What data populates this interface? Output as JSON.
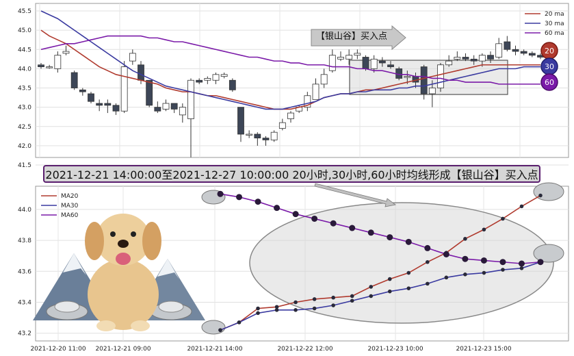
{
  "top_chart": {
    "y_ticks": [
      "45.5",
      "45.0",
      "44.5",
      "44.0",
      "43.5",
      "43.0",
      "42.5",
      "42.0",
      "41.5"
    ],
    "legend": [
      {
        "label": "20 ma",
        "color": "#b03a2e"
      },
      {
        "label": "30 ma",
        "color": "#3a3aa0"
      },
      {
        "label": "60 ma",
        "color": "#7a1aa8"
      }
    ],
    "arrow_label": "【银山谷】买入点",
    "badges": [
      {
        "label": "20",
        "color": "#b03a2e"
      },
      {
        "label": "30",
        "color": "#3a3aa0"
      },
      {
        "label": "60",
        "color": "#7a1aa8"
      }
    ]
  },
  "banner": "2021-12-21 14:00:00至2021-12-27 10:00:00 20小时,30小时,60小时均线形成【银山谷】买入点",
  "bottom_chart": {
    "y_ticks": [
      "44.0",
      "43.8",
      "43.6",
      "43.4",
      "43.2"
    ],
    "x_ticks": [
      "2021-12-20 11:00",
      "2021-12-21 09:00",
      "2021-12-21 14:00",
      "2021-12-22 12:00",
      "2021-12-23 10:00",
      "2021-12-23 15:00"
    ],
    "legend": [
      {
        "label": "MA20",
        "color": "#b03a2e"
      },
      {
        "label": "MA30",
        "color": "#3a3aa0"
      },
      {
        "label": "MA60",
        "color": "#7a1aa8"
      }
    ]
  },
  "chart_data": [
    {
      "type": "candlestick",
      "ylim": [
        41.5,
        45.5
      ],
      "candles": [
        [
          44.1,
          44.05,
          44.15,
          44.0
        ],
        [
          44.05,
          44.05,
          44.1,
          44.0
        ],
        [
          44.0,
          44.35,
          44.45,
          43.9
        ],
        [
          44.4,
          44.45,
          44.6,
          44.35
        ],
        [
          43.9,
          43.5,
          43.95,
          43.45
        ],
        [
          43.45,
          43.4,
          43.5,
          43.3
        ],
        [
          43.35,
          43.15,
          43.4,
          43.1
        ],
        [
          43.1,
          43.05,
          43.2,
          42.9
        ],
        [
          43.1,
          43.05,
          43.2,
          42.85
        ],
        [
          43.05,
          42.9,
          43.1,
          42.8
        ],
        [
          42.9,
          44.05,
          44.2,
          42.85
        ],
        [
          44.2,
          44.4,
          44.5,
          44.1
        ],
        [
          44.1,
          43.7,
          44.2,
          43.6
        ],
        [
          43.7,
          43.05,
          43.7,
          43.0
        ],
        [
          43.0,
          42.9,
          43.15,
          42.85
        ],
        [
          42.95,
          43.1,
          43.2,
          42.9
        ],
        [
          43.1,
          42.95,
          43.1,
          42.85
        ],
        [
          42.8,
          43.0,
          43.1,
          42.6
        ],
        [
          42.7,
          43.7,
          43.75,
          41.7
        ],
        [
          43.7,
          43.65,
          43.75,
          43.6
        ],
        [
          43.7,
          43.75,
          43.8,
          43.6
        ],
        [
          43.7,
          43.85,
          43.9,
          43.6
        ],
        [
          43.8,
          43.85,
          43.9,
          43.75
        ],
        [
          43.7,
          43.45,
          43.75,
          43.4
        ],
        [
          43.0,
          42.3,
          43.0,
          42.1
        ],
        [
          42.3,
          42.3,
          42.4,
          42.2
        ],
        [
          42.3,
          42.2,
          42.35,
          42.0
        ],
        [
          42.2,
          42.15,
          42.25,
          42.0
        ],
        [
          42.15,
          42.35,
          42.4,
          42.1
        ],
        [
          42.45,
          42.6,
          42.7,
          42.4
        ],
        [
          42.7,
          42.85,
          42.9,
          42.6
        ],
        [
          42.9,
          43.0,
          43.05,
          42.85
        ],
        [
          43.0,
          43.3,
          43.4,
          42.9
        ],
        [
          43.2,
          43.6,
          43.75,
          43.2
        ],
        [
          43.6,
          43.85,
          44.0,
          43.5
        ],
        [
          43.95,
          44.35,
          44.5,
          43.9
        ],
        [
          44.25,
          44.3,
          44.45,
          44.2
        ],
        [
          44.25,
          44.35,
          44.5,
          44.1
        ],
        [
          44.35,
          44.4,
          44.5,
          44.25
        ],
        [
          44.3,
          44.0,
          44.35,
          43.95
        ],
        [
          44.0,
          44.25,
          44.35,
          43.9
        ],
        [
          44.2,
          44.15,
          44.3,
          44.05
        ],
        [
          44.1,
          44.05,
          44.2,
          44.0
        ],
        [
          44.0,
          43.75,
          44.05,
          43.7
        ],
        [
          43.8,
          43.8,
          43.95,
          43.6
        ],
        [
          43.8,
          43.65,
          43.9,
          43.5
        ],
        [
          44.05,
          43.35,
          44.1,
          43.2
        ],
        [
          43.35,
          43.5,
          43.7,
          43.0
        ],
        [
          43.5,
          44.1,
          44.15,
          43.4
        ],
        [
          44.1,
          44.2,
          44.35,
          44.05
        ],
        [
          44.25,
          44.3,
          44.45,
          44.2
        ],
        [
          44.3,
          44.25,
          44.4,
          44.2
        ],
        [
          44.25,
          44.2,
          44.35,
          44.1
        ],
        [
          44.2,
          44.35,
          44.4,
          44.05
        ],
        [
          44.35,
          44.25,
          44.45,
          44.15
        ],
        [
          44.3,
          44.65,
          44.8,
          44.25
        ],
        [
          44.7,
          44.5,
          44.85,
          44.45
        ],
        [
          44.5,
          44.45,
          44.6,
          44.35
        ],
        [
          44.45,
          44.4,
          44.5,
          44.35
        ],
        [
          44.4,
          44.35,
          44.45,
          44.3
        ],
        [
          44.35,
          44.3,
          44.4,
          44.25
        ]
      ],
      "ma20": [
        45.0,
        44.85,
        44.75,
        44.65,
        44.5,
        44.35,
        44.2,
        44.05,
        43.95,
        43.85,
        43.8,
        43.75,
        43.7,
        43.65,
        43.6,
        43.5,
        43.45,
        43.4,
        43.4,
        43.35,
        43.3,
        43.3,
        43.25,
        43.2,
        43.15,
        43.1,
        43.05,
        43.0,
        42.95,
        42.95,
        42.95,
        43.0,
        43.05,
        43.15,
        43.25,
        43.3,
        43.35,
        43.35,
        43.4,
        43.45,
        43.45,
        43.5,
        43.55,
        43.6,
        43.65,
        43.7,
        43.75,
        43.8,
        43.85,
        43.9,
        43.95,
        44.0,
        44.05,
        44.1,
        44.1,
        44.1,
        44.1,
        44.1,
        44.1,
        44.1,
        44.1
      ],
      "ma30": [
        45.5,
        45.4,
        45.3,
        45.15,
        45.0,
        44.85,
        44.7,
        44.55,
        44.4,
        44.25,
        44.1,
        43.95,
        43.85,
        43.75,
        43.65,
        43.55,
        43.5,
        43.45,
        43.4,
        43.35,
        43.3,
        43.25,
        43.2,
        43.15,
        43.1,
        43.05,
        43.0,
        42.95,
        42.95,
        42.95,
        43.0,
        43.05,
        43.1,
        43.15,
        43.25,
        43.3,
        43.35,
        43.35,
        43.4,
        43.4,
        43.45,
        43.45,
        43.45,
        43.5,
        43.5,
        43.55,
        43.55,
        43.6,
        43.65,
        43.7,
        43.75,
        43.8,
        43.85,
        43.9,
        43.95,
        44.0,
        44.0,
        44.0,
        44.05,
        44.05,
        44.05
      ],
      "ma60": [
        44.5,
        44.55,
        44.6,
        44.65,
        44.65,
        44.7,
        44.75,
        44.8,
        44.85,
        44.85,
        44.85,
        44.85,
        44.85,
        44.8,
        44.8,
        44.75,
        44.7,
        44.7,
        44.65,
        44.6,
        44.55,
        44.5,
        44.45,
        44.4,
        44.35,
        44.3,
        44.3,
        44.25,
        44.2,
        44.2,
        44.15,
        44.15,
        44.1,
        44.1,
        44.1,
        44.05,
        44.05,
        44.05,
        44.0,
        44.0,
        43.95,
        43.95,
        43.9,
        43.85,
        43.85,
        43.8,
        43.8,
        43.75,
        43.75,
        43.7,
        43.7,
        43.65,
        43.65,
        43.65,
        43.65,
        43.6,
        43.6,
        43.6,
        43.6,
        43.6,
        43.6
      ]
    },
    {
      "type": "line",
      "ylim": [
        43.15,
        44.15
      ],
      "series": [
        {
          "name": "MA20",
          "color": "#b03a2e",
          "values": [
            43.22,
            43.27,
            43.36,
            43.37,
            43.4,
            43.42,
            43.43,
            43.44,
            43.5,
            43.55,
            43.59,
            43.66,
            43.72,
            43.81,
            43.87,
            43.94,
            44.02,
            44.09
          ]
        },
        {
          "name": "MA30",
          "color": "#3a3aa0",
          "values": [
            43.22,
            43.27,
            43.33,
            43.35,
            43.35,
            43.36,
            43.38,
            43.41,
            43.44,
            43.47,
            43.49,
            43.52,
            43.56,
            43.58,
            43.59,
            43.61,
            43.62,
            43.66
          ]
        },
        {
          "name": "MA60",
          "color": "#7a1aa8",
          "values": [
            44.1,
            44.08,
            44.05,
            44.01,
            43.97,
            43.94,
            43.91,
            43.88,
            43.85,
            43.82,
            43.79,
            43.75,
            43.71,
            43.68,
            43.67,
            43.66,
            43.65,
            43.66
          ]
        }
      ]
    }
  ]
}
